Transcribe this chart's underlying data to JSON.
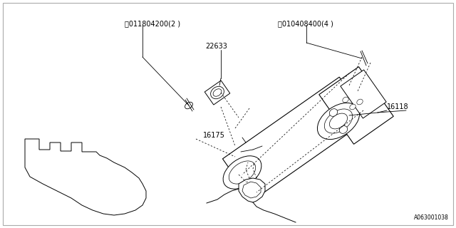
{
  "bg_color": "#ffffff",
  "line_color": "#000000",
  "fig_width": 6.4,
  "fig_height": 3.2,
  "dpi": 100,
  "labels": {
    "S_label": "Ⓢ011804200(2 )",
    "B_label": "Ⓑ010408400(4 )",
    "part_22633": "22633",
    "part_16118": "16118",
    "part_16175": "16175",
    "diagram_id": "A063001038"
  }
}
